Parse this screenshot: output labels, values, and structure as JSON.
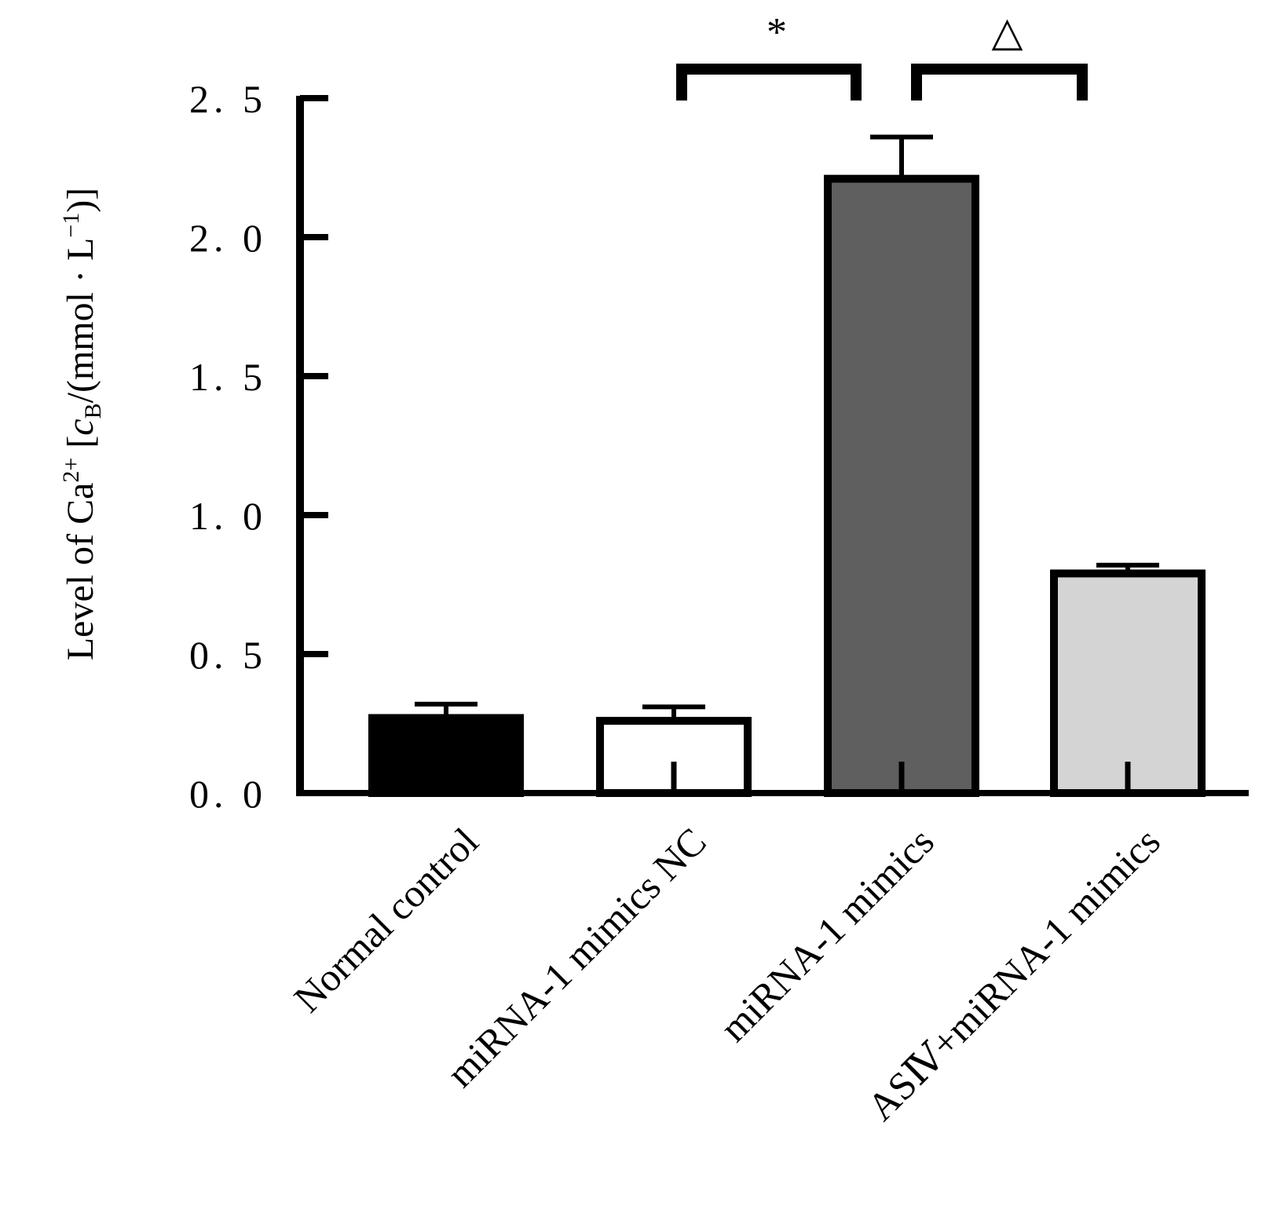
{
  "chart_data": {
    "type": "bar",
    "title": "",
    "xlabel": "",
    "ylabel": {
      "prefix": "Level of Ca",
      "superscript": "2+",
      "mid": " [",
      "italic": "c",
      "subscript": "B",
      "unit_open": "/(mmol · L",
      "unit_exp": "−1",
      "suffix": ")]"
    },
    "ylim": [
      0,
      2.5
    ],
    "yticks": [
      "0. 0",
      "0. 5",
      "1. 0",
      "1. 5",
      "2. 0",
      "2. 5"
    ],
    "ytick_values": [
      0,
      0.5,
      1.0,
      1.5,
      2.0,
      2.5
    ],
    "categories": [
      "Normal control",
      "miRNA-1 mimics NC",
      "miRNA-1 mimics",
      "ASⅣ+miRNA-1 mimics"
    ],
    "values": [
      0.27,
      0.26,
      2.21,
      0.79
    ],
    "errors": [
      0.05,
      0.05,
      0.15,
      0.03
    ],
    "colors": [
      "#000000",
      "#ffffff",
      "#5f5f5f",
      "#d4d4d4"
    ],
    "significance": [
      {
        "from": 1,
        "to": 2,
        "symbol": "*"
      },
      {
        "from": 2,
        "to": 3,
        "symbol": "△"
      }
    ],
    "grid": false,
    "legend": "none"
  }
}
